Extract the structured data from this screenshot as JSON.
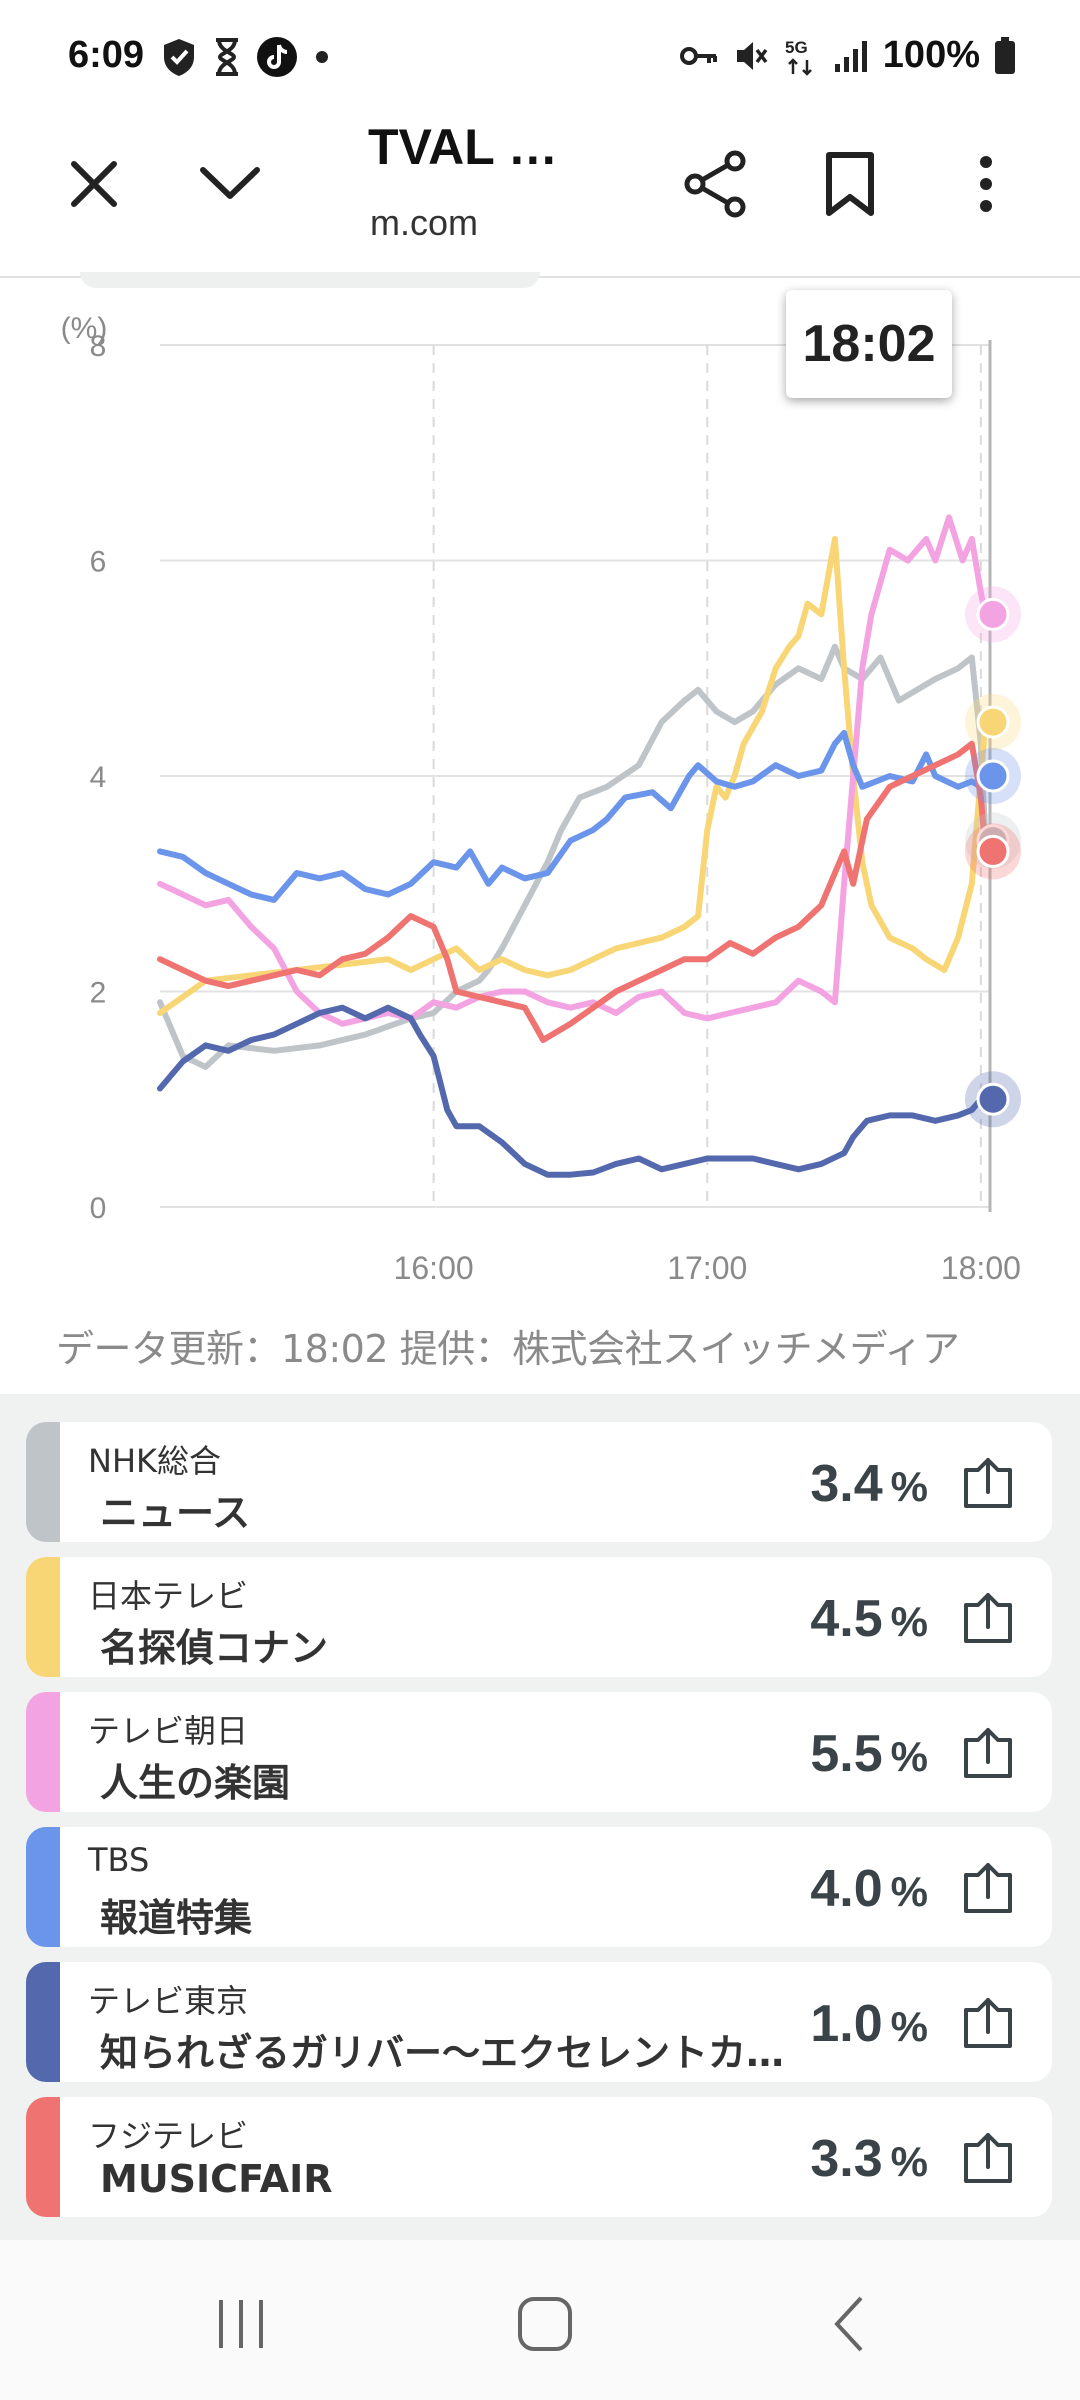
{
  "status_bar": {
    "time": "6:09",
    "battery": "100%",
    "network": "5G"
  },
  "toolbar": {
    "title": "TVAL …",
    "url": "m.com",
    "icons": [
      "close-icon",
      "chevron-down-icon",
      "share-icon",
      "bookmark-icon",
      "more-vert-icon"
    ]
  },
  "chart": {
    "tooltip": "18:02",
    "unit": "(%)"
  },
  "data_note": "データ更新：18:02  提供：株式会社スイッチメディア",
  "channels": [
    {
      "channel": "NHK総合",
      "program": "ニュース",
      "value": "3.4",
      "unit": "%",
      "color": "#bfc4c9"
    },
    {
      "channel": "日本テレビ",
      "program": "名探偵コナン",
      "value": "4.5",
      "unit": "%",
      "color": "#f9d675"
    },
    {
      "channel": "テレビ朝日",
      "program": "人生の楽園",
      "value": "5.5",
      "unit": "%",
      "color": "#f4a3e2"
    },
    {
      "channel": "TBS",
      "program": "報道特集",
      "value": "4.0",
      "unit": "%",
      "color": "#6a95ea"
    },
    {
      "channel": "テレビ東京",
      "program": "知られざるガリバー～エクセレントカンパニーファイル～",
      "value": "1.0",
      "unit": "%",
      "color": "#5469ad"
    },
    {
      "channel": "フジテレビ",
      "program": "MUSICFAIR",
      "value": "3.3",
      "unit": "%",
      "color": "#ef7471"
    }
  ],
  "chart_data": {
    "type": "line",
    "title": "",
    "xlabel": "",
    "ylabel": "(%)",
    "ylim": [
      0,
      8
    ],
    "y_ticks": [
      "0",
      "2",
      "4",
      "6",
      "8"
    ],
    "x_ticks": [
      "16:00",
      "17:00",
      "18:00"
    ],
    "x_range_minutes": [
      -60,
      122
    ],
    "series": [
      {
        "name": "NHK総合",
        "color": "#bfc4c9",
        "points": [
          [
            -60,
            1.9
          ],
          [
            -55,
            1.4
          ],
          [
            -50,
            1.3
          ],
          [
            -45,
            1.5
          ],
          [
            -35,
            1.45
          ],
          [
            -25,
            1.5
          ],
          [
            -15,
            1.6
          ],
          [
            -5,
            1.75
          ],
          [
            0,
            1.8
          ],
          [
            5,
            2.0
          ],
          [
            10,
            2.1
          ],
          [
            12,
            2.2
          ],
          [
            15,
            2.4
          ],
          [
            20,
            2.8
          ],
          [
            25,
            3.2
          ],
          [
            28,
            3.5
          ],
          [
            32,
            3.8
          ],
          [
            38,
            3.9
          ],
          [
            45,
            4.1
          ],
          [
            50,
            4.5
          ],
          [
            55,
            4.7
          ],
          [
            58,
            4.8
          ],
          [
            62,
            4.6
          ],
          [
            66,
            4.5
          ],
          [
            70,
            4.6
          ],
          [
            75,
            4.85
          ],
          [
            80,
            5.0
          ],
          [
            85,
            4.9
          ],
          [
            88,
            5.2
          ],
          [
            90,
            5.0
          ],
          [
            94,
            4.9
          ],
          [
            98,
            5.1
          ],
          [
            102,
            4.7
          ],
          [
            106,
            4.8
          ],
          [
            110,
            4.9
          ],
          [
            115,
            5.0
          ],
          [
            118,
            5.1
          ],
          [
            120,
            4.3
          ],
          [
            121,
            3.4
          ]
        ]
      },
      {
        "name": "日本テレビ",
        "color": "#f9d675",
        "points": [
          [
            -60,
            1.8
          ],
          [
            -55,
            1.95
          ],
          [
            -50,
            2.1
          ],
          [
            -40,
            2.15
          ],
          [
            -30,
            2.2
          ],
          [
            -20,
            2.25
          ],
          [
            -10,
            2.3
          ],
          [
            -5,
            2.2
          ],
          [
            0,
            2.3
          ],
          [
            5,
            2.4
          ],
          [
            10,
            2.2
          ],
          [
            15,
            2.3
          ],
          [
            20,
            2.2
          ],
          [
            25,
            2.15
          ],
          [
            30,
            2.2
          ],
          [
            35,
            2.3
          ],
          [
            40,
            2.4
          ],
          [
            45,
            2.45
          ],
          [
            50,
            2.5
          ],
          [
            55,
            2.6
          ],
          [
            58,
            2.7
          ],
          [
            60,
            3.5
          ],
          [
            62,
            3.9
          ],
          [
            64,
            3.8
          ],
          [
            66,
            4.0
          ],
          [
            68,
            4.3
          ],
          [
            72,
            4.6
          ],
          [
            75,
            5.0
          ],
          [
            78,
            5.2
          ],
          [
            80,
            5.3
          ],
          [
            82,
            5.6
          ],
          [
            85,
            5.5
          ],
          [
            88,
            6.2
          ],
          [
            90,
            5.0
          ],
          [
            92,
            4.0
          ],
          [
            94,
            3.2
          ],
          [
            96,
            2.8
          ],
          [
            100,
            2.5
          ],
          [
            105,
            2.4
          ],
          [
            108,
            2.3
          ],
          [
            112,
            2.2
          ],
          [
            115,
            2.5
          ],
          [
            118,
            3.0
          ],
          [
            120,
            4.0
          ],
          [
            121,
            4.5
          ]
        ]
      },
      {
        "name": "テレビ朝日",
        "color": "#f4a3e2",
        "points": [
          [
            -60,
            3.0
          ],
          [
            -55,
            2.9
          ],
          [
            -50,
            2.8
          ],
          [
            -45,
            2.85
          ],
          [
            -40,
            2.6
          ],
          [
            -35,
            2.4
          ],
          [
            -30,
            2.0
          ],
          [
            -25,
            1.8
          ],
          [
            -20,
            1.7
          ],
          [
            -15,
            1.75
          ],
          [
            -10,
            1.8
          ],
          [
            -5,
            1.75
          ],
          [
            0,
            1.9
          ],
          [
            5,
            1.85
          ],
          [
            10,
            1.95
          ],
          [
            15,
            2.0
          ],
          [
            20,
            2.0
          ],
          [
            25,
            1.9
          ],
          [
            30,
            1.85
          ],
          [
            35,
            1.9
          ],
          [
            40,
            1.8
          ],
          [
            45,
            1.95
          ],
          [
            50,
            2.0
          ],
          [
            55,
            1.8
          ],
          [
            60,
            1.75
          ],
          [
            65,
            1.8
          ],
          [
            70,
            1.85
          ],
          [
            75,
            1.9
          ],
          [
            80,
            2.1
          ],
          [
            85,
            2.0
          ],
          [
            88,
            1.9
          ],
          [
            90,
            3.0
          ],
          [
            92,
            4.0
          ],
          [
            94,
            5.0
          ],
          [
            96,
            5.5
          ],
          [
            100,
            6.1
          ],
          [
            104,
            6.0
          ],
          [
            108,
            6.2
          ],
          [
            110,
            6.0
          ],
          [
            113,
            6.4
          ],
          [
            116,
            6.0
          ],
          [
            118,
            6.2
          ],
          [
            120,
            5.7
          ],
          [
            121,
            5.5
          ]
        ]
      },
      {
        "name": "TBS",
        "color": "#6a95ea",
        "points": [
          [
            -60,
            3.3
          ],
          [
            -55,
            3.25
          ],
          [
            -50,
            3.1
          ],
          [
            -45,
            3.0
          ],
          [
            -40,
            2.9
          ],
          [
            -35,
            2.85
          ],
          [
            -30,
            3.1
          ],
          [
            -25,
            3.05
          ],
          [
            -20,
            3.1
          ],
          [
            -15,
            2.95
          ],
          [
            -10,
            2.9
          ],
          [
            -5,
            3.0
          ],
          [
            0,
            3.2
          ],
          [
            5,
            3.15
          ],
          [
            8,
            3.3
          ],
          [
            12,
            3.0
          ],
          [
            15,
            3.15
          ],
          [
            20,
            3.05
          ],
          [
            25,
            3.1
          ],
          [
            30,
            3.4
          ],
          [
            35,
            3.5
          ],
          [
            38,
            3.6
          ],
          [
            42,
            3.8
          ],
          [
            48,
            3.85
          ],
          [
            52,
            3.7
          ],
          [
            56,
            4.0
          ],
          [
            58,
            4.1
          ],
          [
            62,
            3.95
          ],
          [
            66,
            3.9
          ],
          [
            70,
            3.95
          ],
          [
            75,
            4.1
          ],
          [
            80,
            4.0
          ],
          [
            85,
            4.05
          ],
          [
            88,
            4.3
          ],
          [
            90,
            4.4
          ],
          [
            92,
            4.1
          ],
          [
            94,
            3.9
          ],
          [
            100,
            4.0
          ],
          [
            105,
            3.95
          ],
          [
            108,
            4.2
          ],
          [
            110,
            4.0
          ],
          [
            115,
            3.9
          ],
          [
            118,
            3.95
          ],
          [
            120,
            3.9
          ],
          [
            121,
            4.0
          ]
        ]
      },
      {
        "name": "テレビ東京",
        "color": "#5469ad",
        "points": [
          [
            -60,
            1.1
          ],
          [
            -55,
            1.35
          ],
          [
            -50,
            1.5
          ],
          [
            -45,
            1.45
          ],
          [
            -40,
            1.55
          ],
          [
            -35,
            1.6
          ],
          [
            -30,
            1.7
          ],
          [
            -25,
            1.8
          ],
          [
            -20,
            1.85
          ],
          [
            -15,
            1.75
          ],
          [
            -10,
            1.85
          ],
          [
            -5,
            1.75
          ],
          [
            -3,
            1.6
          ],
          [
            0,
            1.4
          ],
          [
            3,
            0.9
          ],
          [
            5,
            0.75
          ],
          [
            10,
            0.75
          ],
          [
            15,
            0.6
          ],
          [
            20,
            0.4
          ],
          [
            25,
            0.3
          ],
          [
            30,
            0.3
          ],
          [
            35,
            0.32
          ],
          [
            40,
            0.4
          ],
          [
            45,
            0.45
          ],
          [
            50,
            0.35
          ],
          [
            55,
            0.4
          ],
          [
            60,
            0.45
          ],
          [
            65,
            0.45
          ],
          [
            70,
            0.45
          ],
          [
            75,
            0.4
          ],
          [
            80,
            0.35
          ],
          [
            85,
            0.4
          ],
          [
            90,
            0.5
          ],
          [
            92,
            0.65
          ],
          [
            95,
            0.8
          ],
          [
            100,
            0.85
          ],
          [
            105,
            0.85
          ],
          [
            110,
            0.8
          ],
          [
            115,
            0.85
          ],
          [
            118,
            0.9
          ],
          [
            120,
            1.0
          ],
          [
            121,
            1.0
          ]
        ]
      },
      {
        "name": "フジテレビ",
        "color": "#ef7471",
        "points": [
          [
            -60,
            2.3
          ],
          [
            -55,
            2.2
          ],
          [
            -50,
            2.1
          ],
          [
            -45,
            2.05
          ],
          [
            -40,
            2.1
          ],
          [
            -35,
            2.15
          ],
          [
            -30,
            2.2
          ],
          [
            -25,
            2.15
          ],
          [
            -20,
            2.3
          ],
          [
            -15,
            2.35
          ],
          [
            -10,
            2.5
          ],
          [
            -5,
            2.7
          ],
          [
            0,
            2.6
          ],
          [
            3,
            2.3
          ],
          [
            5,
            2.0
          ],
          [
            10,
            1.95
          ],
          [
            15,
            1.9
          ],
          [
            20,
            1.85
          ],
          [
            22,
            1.7
          ],
          [
            24,
            1.55
          ],
          [
            26,
            1.6
          ],
          [
            30,
            1.7
          ],
          [
            35,
            1.85
          ],
          [
            40,
            2.0
          ],
          [
            45,
            2.1
          ],
          [
            50,
            2.2
          ],
          [
            55,
            2.3
          ],
          [
            60,
            2.3
          ],
          [
            65,
            2.45
          ],
          [
            70,
            2.35
          ],
          [
            75,
            2.5
          ],
          [
            80,
            2.6
          ],
          [
            85,
            2.8
          ],
          [
            88,
            3.1
          ],
          [
            90,
            3.3
          ],
          [
            92,
            3.0
          ],
          [
            95,
            3.6
          ],
          [
            100,
            3.9
          ],
          [
            105,
            4.0
          ],
          [
            110,
            4.1
          ],
          [
            115,
            4.2
          ],
          [
            118,
            4.3
          ],
          [
            120,
            3.8
          ],
          [
            121,
            3.3
          ]
        ]
      }
    ],
    "endpoints": {
      "NHK総合": 3.4,
      "日本テレビ": 4.5,
      "テレビ朝日": 5.5,
      "TBS": 4.0,
      "テレビ東京": 1.0,
      "フジテレビ": 3.3
    }
  }
}
